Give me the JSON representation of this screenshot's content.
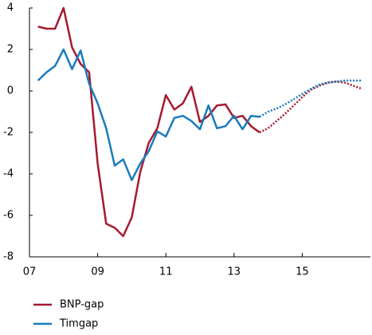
{
  "chart_data": {
    "type": "line",
    "x": [
      2007.25,
      2007.5,
      2007.75,
      2008,
      2008.25,
      2008.5,
      2008.75,
      2009,
      2009.25,
      2009.5,
      2009.75,
      2010,
      2010.25,
      2010.5,
      2010.75,
      2011,
      2011.25,
      2011.5,
      2011.75,
      2012,
      2012.25,
      2012.5,
      2012.75,
      2013,
      2013.25,
      2013.5,
      2013.75,
      2014,
      2014.25,
      2014.5,
      2014.75,
      2015,
      2015.25,
      2015.5,
      2015.75,
      2016,
      2016.25,
      2016.5,
      2016.75
    ],
    "series": [
      {
        "name": "BNP-gap",
        "color": "#a6192e",
        "values": [
          3.1,
          3.0,
          3.0,
          4.0,
          2.1,
          1.3,
          0.9,
          -3.5,
          -6.4,
          -6.6,
          -7.0,
          -6.1,
          -3.9,
          -2.5,
          -1.8,
          -0.2,
          -0.9,
          -0.6,
          0.2,
          -1.5,
          -1.2,
          -0.7,
          -0.65,
          -1.3,
          -1.2,
          -1.7,
          -2.0,
          null,
          null,
          null,
          null,
          null,
          null,
          null,
          null,
          null,
          null,
          null,
          null
        ],
        "forecast": [
          null,
          null,
          null,
          null,
          null,
          null,
          null,
          null,
          null,
          null,
          null,
          null,
          null,
          null,
          null,
          null,
          null,
          null,
          null,
          null,
          null,
          null,
          null,
          null,
          null,
          null,
          -2.0,
          -1.8,
          -1.45,
          -1.1,
          -0.7,
          -0.3,
          0.05,
          0.25,
          0.4,
          0.45,
          0.4,
          0.25,
          0.1
        ]
      },
      {
        "name": "Timgap",
        "color": "#1a7abf",
        "values": [
          0.5,
          0.9,
          1.2,
          2.0,
          1.05,
          1.95,
          0.35,
          -0.6,
          -1.8,
          -3.6,
          -3.3,
          -4.3,
          -3.5,
          -2.9,
          -1.95,
          -2.2,
          -1.3,
          -1.2,
          -1.45,
          -1.85,
          -0.7,
          -1.8,
          -1.7,
          -1.2,
          -1.85,
          -1.2,
          -1.25,
          null,
          null,
          null,
          null,
          null,
          null,
          null,
          null,
          null,
          null,
          null,
          null
        ],
        "forecast": [
          null,
          null,
          null,
          null,
          null,
          null,
          null,
          null,
          null,
          null,
          null,
          null,
          null,
          null,
          null,
          null,
          null,
          null,
          null,
          null,
          null,
          null,
          null,
          null,
          null,
          null,
          -1.25,
          -1.0,
          -0.85,
          -0.65,
          -0.4,
          -0.15,
          0.1,
          0.3,
          0.4,
          0.45,
          0.5,
          0.5,
          0.5
        ]
      }
    ],
    "xlim": [
      2007,
      2017
    ],
    "xticks": [
      {
        "value": 2007,
        "label": "07"
      },
      {
        "value": 2009,
        "label": "09"
      },
      {
        "value": 2011,
        "label": "11"
      },
      {
        "value": 2013,
        "label": "13"
      },
      {
        "value": 2015,
        "label": "15"
      }
    ],
    "ylim": [
      -8,
      4
    ],
    "yticks": [
      -8,
      -6,
      -4,
      -2,
      0,
      2,
      4
    ],
    "legend": "bottom"
  }
}
